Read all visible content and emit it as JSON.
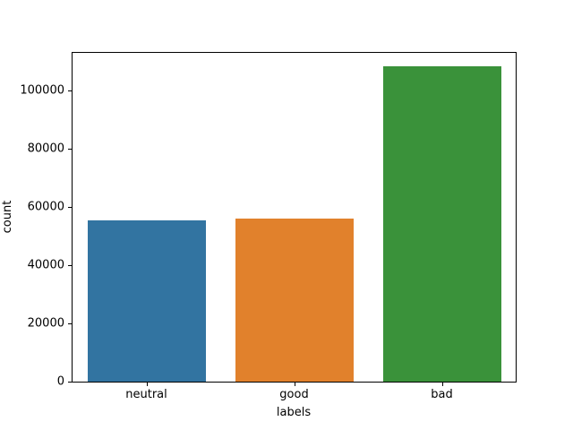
{
  "chart_data": {
    "type": "bar",
    "title": "",
    "xlabel": "labels",
    "ylabel": "count",
    "categories": [
      "neutral",
      "good",
      "bad"
    ],
    "values": [
      55500,
      56000,
      108300
    ],
    "bar_colors": [
      "#3274a1",
      "#e1812c",
      "#3a923a"
    ],
    "yticks": [
      0,
      20000,
      40000,
      60000,
      80000,
      100000
    ],
    "ytick_labels": [
      "0",
      "20000",
      "40000",
      "60000",
      "80000",
      "100000"
    ],
    "ylim": [
      0,
      112900
    ],
    "grid": false,
    "legend": null,
    "bar_width_fraction": 0.8,
    "spine_color": "#000000",
    "background_color": "#ffffff"
  }
}
